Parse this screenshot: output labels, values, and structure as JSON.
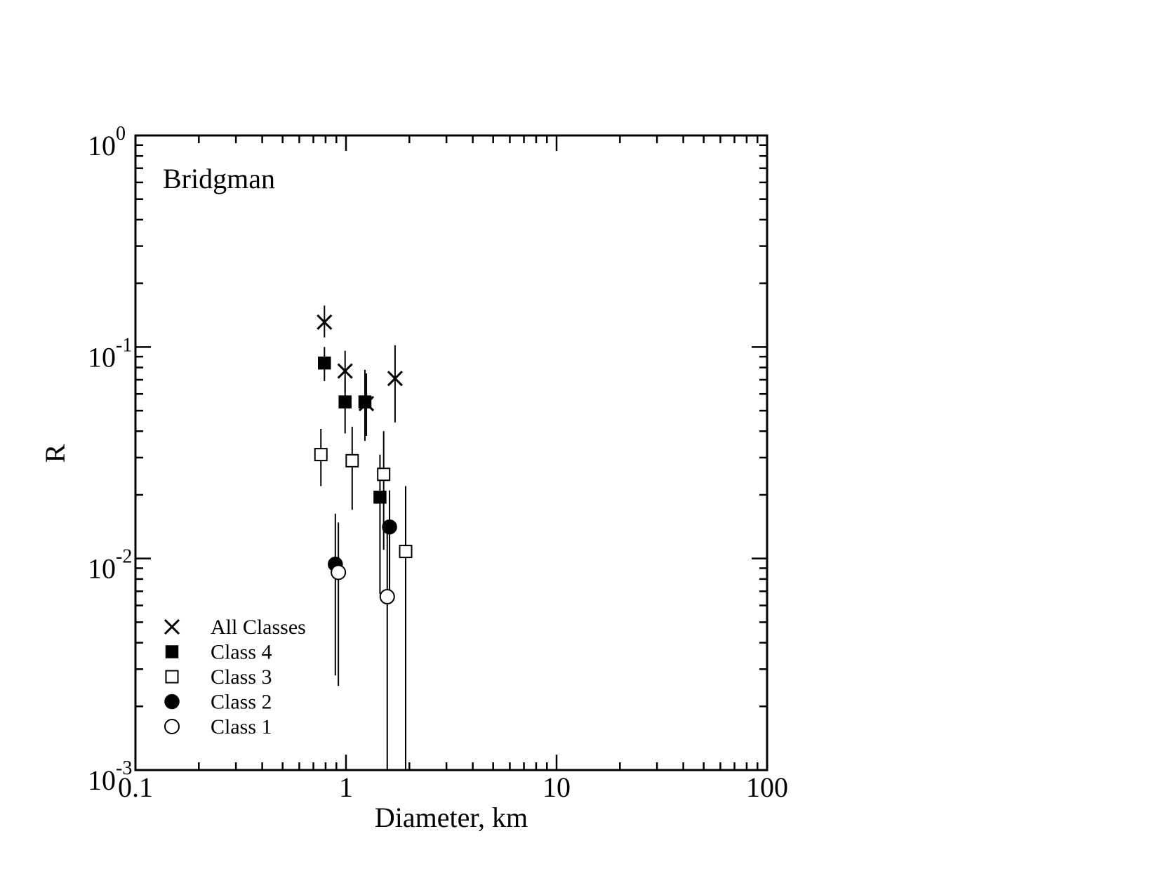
{
  "chart_data": {
    "type": "scatter",
    "annotation": "Bridgman",
    "xlabel": "Diameter, km",
    "ylabel": "R",
    "x_scale": "log",
    "y_scale": "log",
    "xlim": [
      0.1,
      100
    ],
    "ylim": [
      0.001,
      1
    ],
    "x_ticks": [
      {
        "value": 0.1,
        "label": "0.1"
      },
      {
        "value": 1,
        "label": "1"
      },
      {
        "value": 10,
        "label": "10"
      },
      {
        "value": 100,
        "label": "100"
      }
    ],
    "y_ticks": [
      {
        "value": 1,
        "base": "10",
        "exp": "0"
      },
      {
        "value": 0.1,
        "base": "10",
        "exp": "-1"
      },
      {
        "value": 0.01,
        "base": "10",
        "exp": "-2"
      },
      {
        "value": 0.001,
        "base": "10",
        "exp": "-3"
      }
    ],
    "grid": false,
    "legend_position": "bottom-left",
    "series": [
      {
        "name": "All Classes",
        "marker": "x",
        "points": [
          {
            "x": 0.79,
            "y": 0.131,
            "lo": 0.111,
            "hi": 0.157
          },
          {
            "x": 0.99,
            "y": 0.077,
            "lo": 0.061,
            "hi": 0.096
          },
          {
            "x": 1.25,
            "y": 0.054,
            "lo": 0.038,
            "hi": 0.075
          },
          {
            "x": 1.71,
            "y": 0.071,
            "lo": 0.044,
            "hi": 0.102
          }
        ]
      },
      {
        "name": "Class 4",
        "marker": "filled-square",
        "points": [
          {
            "x": 0.79,
            "y": 0.084,
            "lo": 0.069,
            "hi": 0.1
          },
          {
            "x": 0.99,
            "y": 0.055,
            "lo": 0.039,
            "hi": 0.072
          },
          {
            "x": 1.23,
            "y": 0.055,
            "lo": 0.036,
            "hi": 0.078
          },
          {
            "x": 1.45,
            "y": 0.0195,
            "lo": 0.0068,
            "hi": 0.031
          }
        ]
      },
      {
        "name": "Class 3",
        "marker": "open-square",
        "points": [
          {
            "x": 0.76,
            "y": 0.031,
            "lo": 0.022,
            "hi": 0.041
          },
          {
            "x": 1.07,
            "y": 0.029,
            "lo": 0.017,
            "hi": 0.042
          },
          {
            "x": 1.51,
            "y": 0.025,
            "lo": 0.011,
            "hi": 0.04
          },
          {
            "x": 1.92,
            "y": 0.0108,
            "lo": 0.001,
            "hi": 0.022
          }
        ]
      },
      {
        "name": "Class 2",
        "marker": "filled-circle",
        "points": [
          {
            "x": 0.89,
            "y": 0.0094,
            "lo": 0.0028,
            "hi": 0.0163
          },
          {
            "x": 1.61,
            "y": 0.0141,
            "lo": 0.0071,
            "hi": 0.021
          }
        ]
      },
      {
        "name": "Class 1",
        "marker": "open-circle",
        "points": [
          {
            "x": 0.92,
            "y": 0.0086,
            "lo": 0.0025,
            "hi": 0.0148
          },
          {
            "x": 1.57,
            "y": 0.0066,
            "lo": 0.001,
            "hi": 0.0152
          }
        ]
      }
    ]
  }
}
